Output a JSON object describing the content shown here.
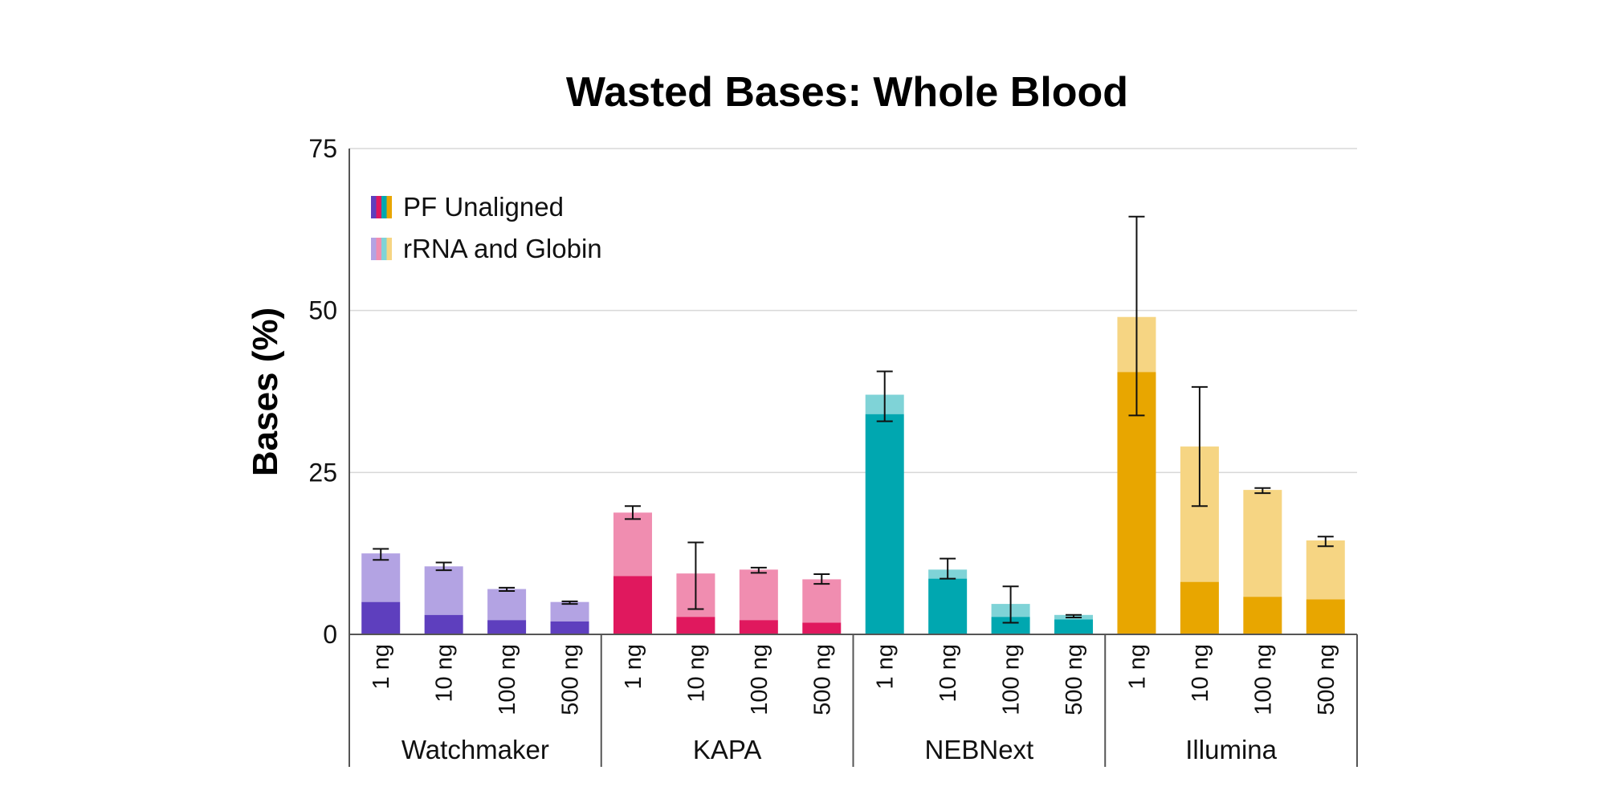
{
  "chart_data": {
    "type": "bar",
    "stacked": true,
    "title": "Wasted Bases: Whole Blood",
    "xlabel": "",
    "ylabel": "Bases (%)",
    "ylim": [
      0,
      75
    ],
    "yticks": [
      0,
      25,
      50,
      75
    ],
    "grid": true,
    "legend_position": "top-left",
    "legend": [
      {
        "label": "PF Unaligned",
        "colors": [
          "#5e3fbe",
          "#e0185e",
          "#00a7b0",
          "#e8a600"
        ]
      },
      {
        "label": "rRNA and Globin",
        "colors": [
          "#b3a3e3",
          "#f08db0",
          "#7fd3d7",
          "#f6d583"
        ]
      }
    ],
    "groups": [
      {
        "name": "Watchmaker",
        "color_dark": "#5e3fbe",
        "color_light": "#b3a3e3",
        "bars": [
          {
            "label": "1 ng",
            "pf_unaligned": 5.0,
            "total": 12.5,
            "err_low": 11.5,
            "err_high": 13.2
          },
          {
            "label": "10 ng",
            "pf_unaligned": 3.0,
            "total": 10.5,
            "err_low": 9.9,
            "err_high": 11.1
          },
          {
            "label": "100 ng",
            "pf_unaligned": 2.2,
            "total": 7.0,
            "err_low": 6.7,
            "err_high": 7.2
          },
          {
            "label": "500 ng",
            "pf_unaligned": 2.0,
            "total": 5.0,
            "err_low": 4.7,
            "err_high": 5.1
          }
        ]
      },
      {
        "name": "KAPA",
        "color_dark": "#e0185e",
        "color_light": "#f08db0",
        "bars": [
          {
            "label": "1 ng",
            "pf_unaligned": 9.0,
            "total": 18.8,
            "err_low": 17.8,
            "err_high": 19.8
          },
          {
            "label": "10 ng",
            "pf_unaligned": 2.7,
            "total": 9.4,
            "err_low": 3.9,
            "err_high": 14.2
          },
          {
            "label": "100 ng",
            "pf_unaligned": 2.2,
            "total": 10.0,
            "err_low": 9.5,
            "err_high": 10.3
          },
          {
            "label": "500 ng",
            "pf_unaligned": 1.8,
            "total": 8.5,
            "err_low": 7.8,
            "err_high": 9.3
          }
        ]
      },
      {
        "name": "NEBNext",
        "color_dark": "#00a7b0",
        "color_light": "#7fd3d7",
        "bars": [
          {
            "label": "1 ng",
            "pf_unaligned": 34.0,
            "total": 37.0,
            "err_low": 32.9,
            "err_high": 40.6
          },
          {
            "label": "10 ng",
            "pf_unaligned": 8.6,
            "total": 10.0,
            "err_low": 8.6,
            "err_high": 11.7
          },
          {
            "label": "100 ng",
            "pf_unaligned": 2.7,
            "total": 4.7,
            "err_low": 1.8,
            "err_high": 7.4
          },
          {
            "label": "500 ng",
            "pf_unaligned": 2.3,
            "total": 3.0,
            "err_low": 2.6,
            "err_high": 3.0
          }
        ]
      },
      {
        "name": "Illumina",
        "color_dark": "#e8a600",
        "color_light": "#f6d583",
        "bars": [
          {
            "label": "1 ng",
            "pf_unaligned": 40.5,
            "total": 49.0,
            "err_low": 33.8,
            "err_high": 64.5
          },
          {
            "label": "10 ng",
            "pf_unaligned": 8.1,
            "total": 29.0,
            "err_low": 19.8,
            "err_high": 38.2
          },
          {
            "label": "100 ng",
            "pf_unaligned": 5.8,
            "total": 22.3,
            "err_low": 21.8,
            "err_high": 22.6
          },
          {
            "label": "500 ng",
            "pf_unaligned": 5.4,
            "total": 14.5,
            "err_low": 13.6,
            "err_high": 15.1
          }
        ]
      }
    ]
  }
}
